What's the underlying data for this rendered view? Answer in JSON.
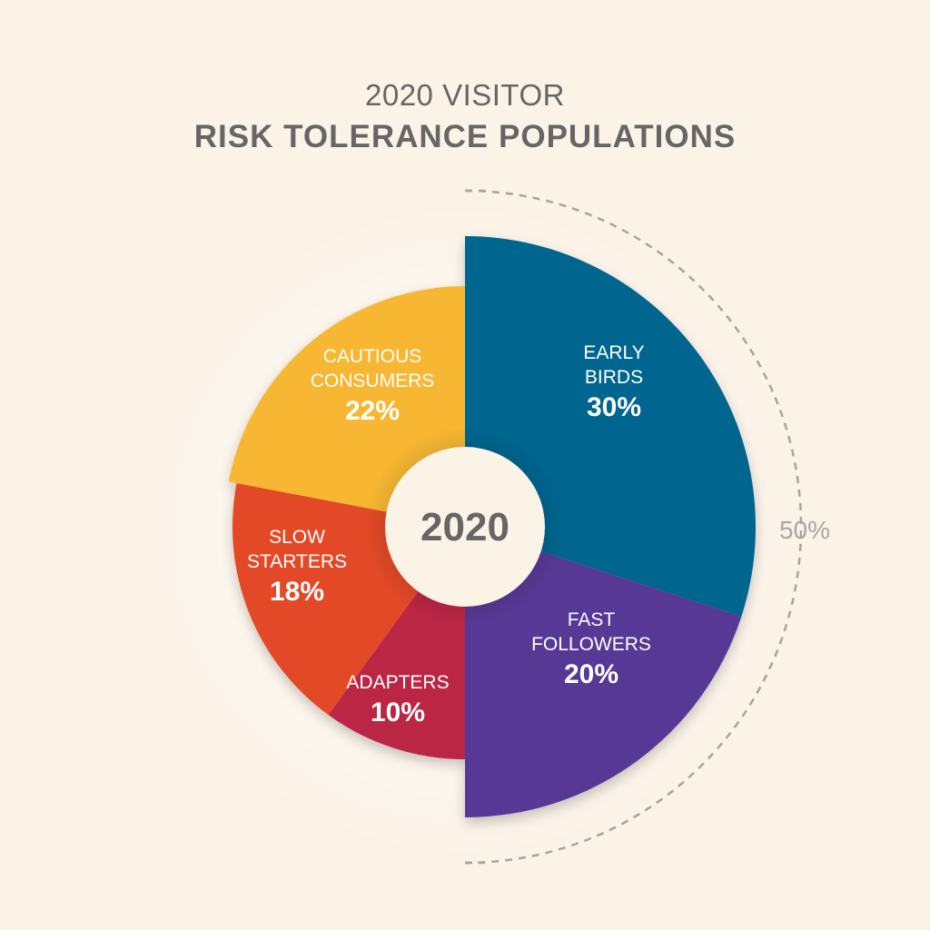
{
  "header": {
    "title_line1": "2020 VISITOR",
    "title_line2": "RISK TOLERANCE POPULATIONS"
  },
  "chart_data": {
    "type": "pie",
    "title": "2020 VISITOR RISK TOLERANCE POPULATIONS",
    "center_label": "2020",
    "slices": [
      {
        "label": [
          "EARLY",
          "BIRDS"
        ],
        "value": 30,
        "display": "30%",
        "color": "#05658f"
      },
      {
        "label": [
          "FAST",
          "FOLLOWERS"
        ],
        "value": 20,
        "display": "20%",
        "color": "#583795"
      },
      {
        "label": [
          "ADAPTERS"
        ],
        "value": 10,
        "display": "10%",
        "color": "#bb2744"
      },
      {
        "label": [
          "SLOW",
          "STARTERS"
        ],
        "value": 18,
        "display": "18%",
        "color": "#e34a26"
      },
      {
        "label": [
          "CAUTIOUS",
          "CONSUMERS"
        ],
        "value": 22,
        "display": "22%",
        "color": "#f7b731"
      }
    ],
    "bracket": {
      "value": 50,
      "display": "50%",
      "spans": [
        "EARLY BIRDS",
        "FAST FOLLOWERS"
      ]
    }
  }
}
